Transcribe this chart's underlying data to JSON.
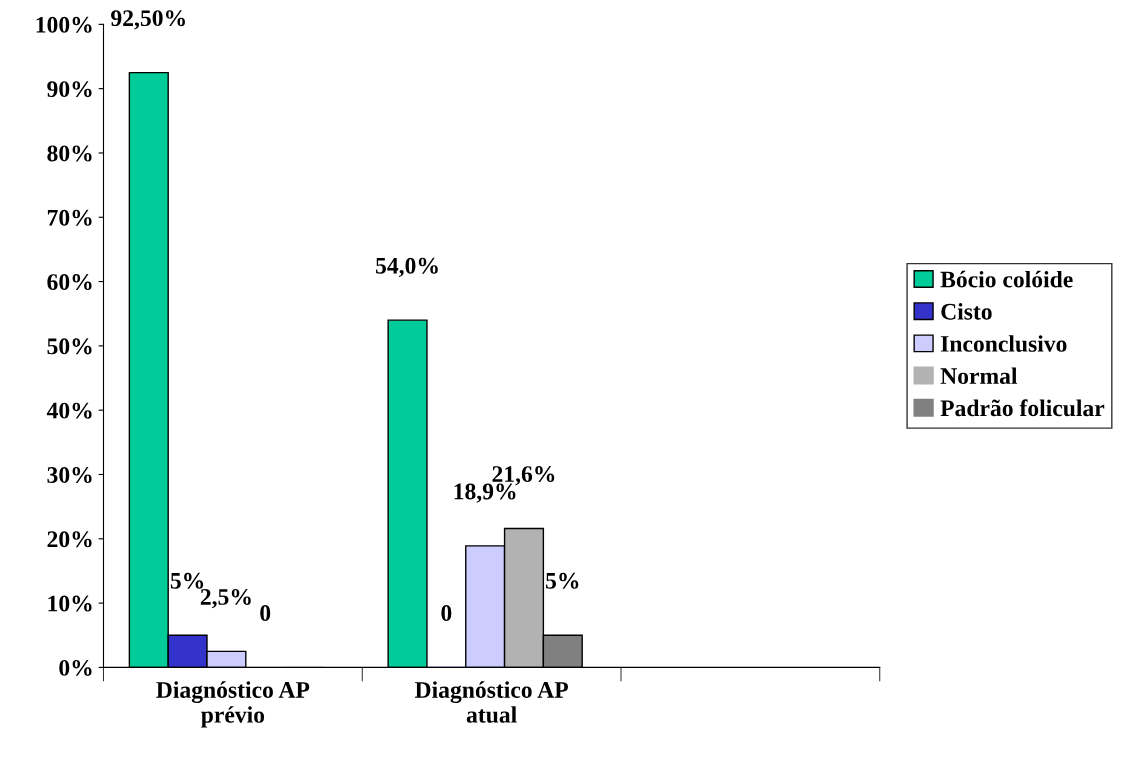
{
  "chart_data": {
    "type": "bar",
    "categories": [
      "Diagnóstico AP\nprévio",
      "Diagnóstico AP\natual",
      null
    ],
    "series": [
      {
        "name": "Bócio colóide",
        "color": "#00cc99",
        "values": [
          92.5,
          54.0,
          null
        ],
        "value_labels": [
          "92,50%",
          "54,0%",
          null
        ]
      },
      {
        "name": "Cisto",
        "color": "#3333cc",
        "values": [
          5,
          0,
          null
        ],
        "value_labels": [
          "5%",
          "0",
          null
        ]
      },
      {
        "name": "Inconclusivo",
        "color": "#ccccff",
        "values": [
          2.5,
          18.9,
          null
        ],
        "value_labels": [
          "2,5%",
          "18,9%",
          null
        ]
      },
      {
        "name": "Normal",
        "color": "#b2b2b2",
        "values": [
          0,
          21.6,
          null
        ],
        "value_labels": [
          "0",
          "21,6%",
          null
        ]
      },
      {
        "name": "Padrão folicular",
        "color": "#808080",
        "values": [
          0,
          5,
          null
        ],
        "value_labels": [
          null,
          "5%",
          null
        ]
      }
    ],
    "ylim": [
      0,
      100
    ],
    "yticks": [
      {
        "value": 0,
        "label": "0%"
      },
      {
        "value": 10,
        "label": "10%"
      },
      {
        "value": 20,
        "label": "20%"
      },
      {
        "value": 30,
        "label": "30%"
      },
      {
        "value": 40,
        "label": "40%"
      },
      {
        "value": 50,
        "label": "50%"
      },
      {
        "value": 60,
        "label": "60%"
      },
      {
        "value": 70,
        "label": "70%"
      },
      {
        "value": 80,
        "label": "80%"
      },
      {
        "value": 90,
        "label": "90%"
      },
      {
        "value": 100,
        "label": "100%"
      }
    ],
    "legend": "right",
    "grid": false
  }
}
